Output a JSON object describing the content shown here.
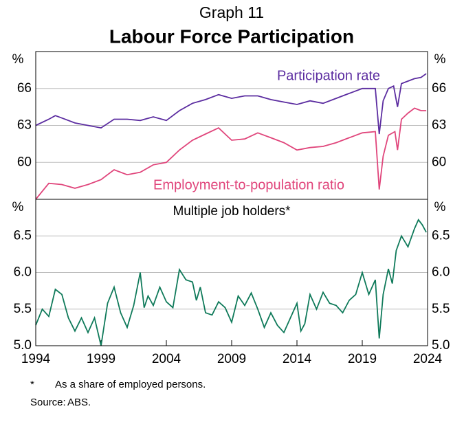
{
  "header": {
    "label": "Graph 11",
    "title": "Labour Force Participation"
  },
  "chart_data": [
    {
      "type": "line",
      "y_unit": "%",
      "xlim": [
        1994,
        2024
      ],
      "ylim": [
        57,
        69
      ],
      "yticks": [
        60,
        63,
        66
      ],
      "grid": true,
      "series": [
        {
          "name": "Participation rate",
          "color": "#5b2ca0",
          "x": [
            1994,
            1995,
            1995.5,
            1996,
            1997,
            1998,
            1999,
            2000,
            2001,
            2002,
            2003,
            2004,
            2005,
            2006,
            2007,
            2008,
            2009,
            2010,
            2011,
            2012,
            2013,
            2014,
            2015,
            2016,
            2017,
            2018,
            2019,
            2020,
            2020.3,
            2020.6,
            2021,
            2021.4,
            2021.7,
            2022,
            2022.5,
            2023,
            2023.5,
            2023.9
          ],
          "values": [
            63.0,
            63.5,
            63.8,
            63.6,
            63.2,
            63.0,
            62.8,
            63.5,
            63.5,
            63.4,
            63.7,
            63.4,
            64.2,
            64.8,
            65.1,
            65.5,
            65.2,
            65.4,
            65.4,
            65.1,
            64.9,
            64.7,
            65.0,
            64.8,
            65.2,
            65.6,
            66.0,
            66.0,
            62.3,
            65.0,
            66.0,
            66.2,
            64.5,
            66.4,
            66.6,
            66.8,
            66.9,
            67.2
          ]
        },
        {
          "name": "Employment-to-population ratio",
          "color": "#e0457b",
          "x": [
            1994,
            1995,
            1996,
            1997,
            1998,
            1999,
            2000,
            2001,
            2002,
            2003,
            2004,
            2005,
            2006,
            2007,
            2008,
            2009,
            2010,
            2011,
            2012,
            2013,
            2014,
            2015,
            2016,
            2017,
            2018,
            2019,
            2020,
            2020.3,
            2020.6,
            2021,
            2021.5,
            2021.7,
            2022,
            2022.5,
            2023,
            2023.5,
            2023.9
          ],
          "values": [
            57.0,
            58.3,
            58.2,
            57.9,
            58.2,
            58.6,
            59.4,
            59.0,
            59.2,
            59.8,
            60.0,
            61.0,
            61.8,
            62.3,
            62.8,
            61.8,
            61.9,
            62.4,
            62.0,
            61.6,
            61.0,
            61.2,
            61.3,
            61.6,
            62.0,
            62.4,
            62.5,
            57.8,
            60.5,
            62.2,
            62.5,
            61.0,
            63.5,
            64.0,
            64.4,
            64.2,
            64.2
          ]
        }
      ]
    },
    {
      "type": "line",
      "title": "Multiple job holders*",
      "y_unit": "%",
      "xlim": [
        1994,
        2024
      ],
      "ylim": [
        5.0,
        7.0
      ],
      "yticks": [
        {
          "value": 5,
          "label": "5.0"
        },
        5.5,
        {
          "value": 6,
          "label": "6.0"
        },
        6.5
      ],
      "grid": true,
      "xticks": [
        1994,
        1999,
        2004,
        2009,
        2014,
        2019,
        2024
      ],
      "series": [
        {
          "name": "Multiple job holders",
          "color": "#0f7a5a",
          "x": [
            1994,
            1994.5,
            1995,
            1995.5,
            1996,
            1996.5,
            1997,
            1997.5,
            1998,
            1998.5,
            1999,
            1999.5,
            2000,
            2000.5,
            2001,
            2001.5,
            2002,
            2002.3,
            2002.6,
            2003,
            2003.5,
            2004,
            2004.5,
            2005,
            2005.5,
            2006,
            2006.3,
            2006.6,
            2007,
            2007.5,
            2008,
            2008.5,
            2009,
            2009.5,
            2010,
            2010.5,
            2011,
            2011.5,
            2012,
            2012.5,
            2013,
            2013.5,
            2014,
            2014.3,
            2014.6,
            2015,
            2015.5,
            2016,
            2016.5,
            2017,
            2017.5,
            2018,
            2018.5,
            2019,
            2019.5,
            2020,
            2020.3,
            2020.6,
            2021,
            2021.3,
            2021.6,
            2022,
            2022.5,
            2023,
            2023.3,
            2023.6,
            2023.9
          ],
          "values": [
            5.28,
            5.5,
            5.4,
            5.77,
            5.7,
            5.38,
            5.2,
            5.38,
            5.18,
            5.38,
            5.0,
            5.58,
            5.8,
            5.45,
            5.25,
            5.55,
            6.0,
            5.52,
            5.68,
            5.55,
            5.8,
            5.6,
            5.52,
            6.04,
            5.9,
            5.87,
            5.62,
            5.8,
            5.45,
            5.42,
            5.6,
            5.52,
            5.32,
            5.68,
            5.55,
            5.72,
            5.5,
            5.25,
            5.45,
            5.28,
            5.18,
            5.38,
            5.58,
            5.2,
            5.3,
            5.7,
            5.5,
            5.73,
            5.58,
            5.55,
            5.45,
            5.62,
            5.7,
            6.0,
            5.7,
            5.9,
            5.1,
            5.7,
            6.05,
            5.85,
            6.3,
            6.5,
            6.35,
            6.6,
            6.72,
            6.65,
            6.55
          ]
        }
      ]
    }
  ],
  "notes": [
    {
      "mark": "*",
      "text": "As a share of employed persons."
    },
    {
      "mark": "Source:",
      "text": "ABS."
    }
  ]
}
